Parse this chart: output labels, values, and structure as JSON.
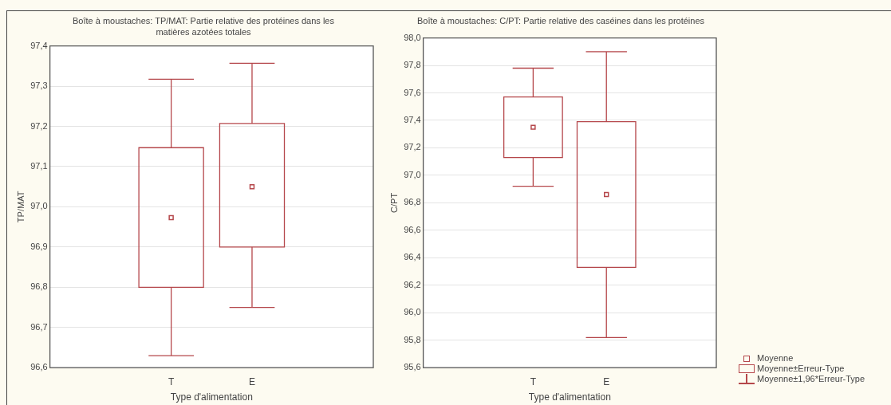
{
  "chart_data": [
    {
      "type": "box",
      "title": "Boîte à moustaches: TP/MAT: Partie relative des protéines dans les matières azotées totales",
      "xlabel": "Type d'alimentation",
      "ylabel": "TP/MAT",
      "categories": [
        "T",
        "E"
      ],
      "series": [
        {
          "color": "#b5474b",
          "boxes": [
            {
              "low": 96.63,
              "q1": 96.8,
              "median": 96.973,
              "q3": 97.147,
              "high": 97.317
            },
            {
              "low": 96.75,
              "q1": 96.9,
              "median": 97.05,
              "q3": 97.207,
              "high": 97.357
            }
          ]
        }
      ],
      "ylim": [
        96.6,
        97.4
      ],
      "yticks": [
        {
          "value": 96.6,
          "label": "96,6"
        },
        {
          "value": 96.7,
          "label": "96,7"
        },
        {
          "value": 96.8,
          "label": "96,8"
        },
        {
          "value": 96.9,
          "label": "96,9"
        },
        {
          "value": 97.0,
          "label": "97,0"
        },
        {
          "value": 97.1,
          "label": "97,1"
        },
        {
          "value": 97.2,
          "label": "97,2"
        },
        {
          "value": 97.3,
          "label": "97,3"
        },
        {
          "value": 97.4,
          "label": "97,4"
        }
      ],
      "grid": "y",
      "marker": "square"
    },
    {
      "type": "box",
      "title": "Boîte à moustaches: C/PT: Partie relative des caséines dans les protéines",
      "xlabel": "Type d'alimentation",
      "ylabel": "C/PT",
      "categories": [
        "T",
        "E"
      ],
      "series": [
        {
          "color": "#b5474b",
          "boxes": [
            {
              "low": 96.92,
              "q1": 97.13,
              "median": 97.35,
              "q3": 97.57,
              "high": 97.78
            },
            {
              "low": 95.82,
              "q1": 96.33,
              "median": 96.86,
              "q3": 97.39,
              "high": 97.9
            }
          ]
        }
      ],
      "ylim": [
        95.6,
        98.0
      ],
      "yticks": [
        {
          "value": 95.6,
          "label": "95,6"
        },
        {
          "value": 95.8,
          "label": "95,8"
        },
        {
          "value": 96.0,
          "label": "96,0"
        },
        {
          "value": 96.2,
          "label": "96,2"
        },
        {
          "value": 96.4,
          "label": "96,4"
        },
        {
          "value": 96.6,
          "label": "96,6"
        },
        {
          "value": 96.8,
          "label": "96,8"
        },
        {
          "value": 97.0,
          "label": "97,0"
        },
        {
          "value": 97.2,
          "label": "97,2"
        },
        {
          "value": 97.4,
          "label": "97,4"
        },
        {
          "value": 97.6,
          "label": "97,6"
        },
        {
          "value": 97.8,
          "label": "97,8"
        },
        {
          "value": 98.0,
          "label": "98,0"
        }
      ],
      "grid": "y",
      "marker": "square",
      "annotations": [
        "Moyenne",
        "Moyenne±Erreur-Type",
        "Moyenne±1,96*Erreur-Type"
      ]
    }
  ]
}
